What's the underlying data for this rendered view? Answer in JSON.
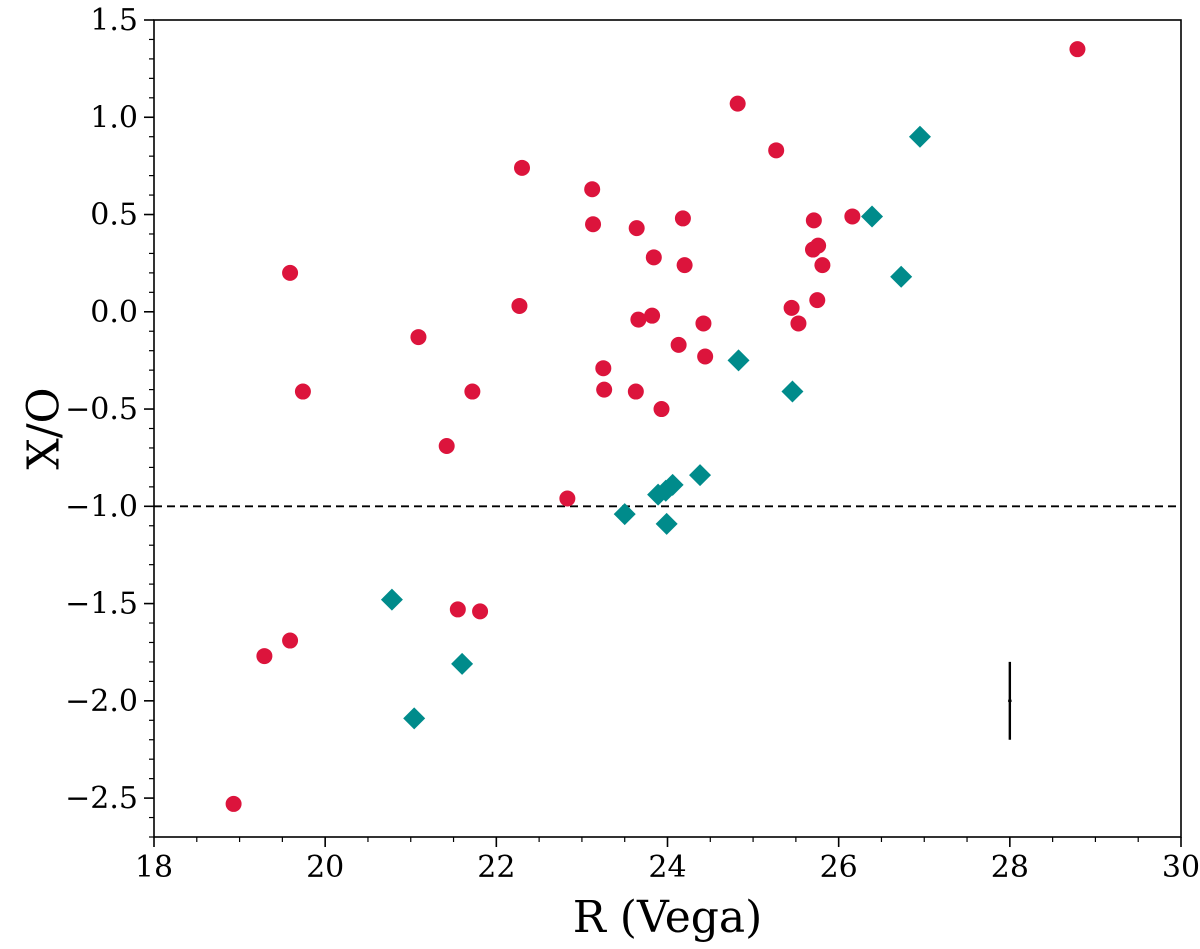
{
  "chart_data": {
    "type": "scatter",
    "title": "",
    "xlabel": "R (Vega)",
    "ylabel": "X/O",
    "xlim": [
      18,
      30
    ],
    "ylim": [
      -2.7,
      1.5
    ],
    "x_major_ticks": [
      18,
      20,
      22,
      24,
      26,
      28,
      30
    ],
    "x_tick_labels": [
      "18",
      "20",
      "22",
      "24",
      "26",
      "28",
      "30"
    ],
    "y_major_ticks": [
      -2.5,
      -2.0,
      -1.5,
      -1.0,
      -0.5,
      0.0,
      0.5,
      1.0,
      1.5
    ],
    "y_tick_labels": [
      "−2.5",
      "−2.0",
      "−1.5",
      "−1.0",
      "−0.5",
      "0.0",
      "0.5",
      "1.0",
      "1.5"
    ],
    "grid": false,
    "reference_line": {
      "y": -1.0,
      "style": "dashed",
      "color": "#000000"
    },
    "error_bar": {
      "x": 28.0,
      "y": -2.0,
      "yerr": 0.2,
      "xerr": 0.02,
      "color": "#000000"
    },
    "series": [
      {
        "name": "circles",
        "marker": "circle",
        "color": "#DC143C",
        "points": [
          [
            18.93,
            -2.53
          ],
          [
            19.29,
            -1.77
          ],
          [
            19.59,
            -1.69
          ],
          [
            19.59,
            0.2
          ],
          [
            19.74,
            -0.41
          ],
          [
            21.09,
            -0.13
          ],
          [
            21.42,
            -0.69
          ],
          [
            21.55,
            -1.53
          ],
          [
            21.72,
            -0.41
          ],
          [
            21.81,
            -1.54
          ],
          [
            22.27,
            0.03
          ],
          [
            22.3,
            0.74
          ],
          [
            22.83,
            -0.96
          ],
          [
            23.12,
            0.63
          ],
          [
            23.13,
            0.45
          ],
          [
            23.25,
            -0.29
          ],
          [
            23.26,
            -0.4
          ],
          [
            23.63,
            -0.41
          ],
          [
            23.64,
            0.43
          ],
          [
            23.66,
            -0.04
          ],
          [
            23.82,
            -0.02
          ],
          [
            23.84,
            0.28
          ],
          [
            23.93,
            -0.5
          ],
          [
            24.13,
            -0.17
          ],
          [
            24.18,
            0.48
          ],
          [
            24.2,
            0.24
          ],
          [
            24.42,
            -0.06
          ],
          [
            24.44,
            -0.23
          ],
          [
            24.82,
            1.07
          ],
          [
            25.27,
            0.83
          ],
          [
            25.45,
            0.02
          ],
          [
            25.53,
            -0.06
          ],
          [
            25.7,
            0.32
          ],
          [
            25.71,
            0.47
          ],
          [
            25.75,
            0.06
          ],
          [
            25.76,
            0.34
          ],
          [
            25.81,
            0.24
          ],
          [
            26.16,
            0.49
          ],
          [
            28.79,
            1.35
          ]
        ]
      },
      {
        "name": "diamonds",
        "marker": "diamond",
        "color": "#008B8B",
        "points": [
          [
            20.78,
            -1.48
          ],
          [
            21.04,
            -2.09
          ],
          [
            21.6,
            -1.81
          ],
          [
            23.5,
            -1.04
          ],
          [
            23.89,
            -0.94
          ],
          [
            23.98,
            -0.92
          ],
          [
            23.99,
            -1.09
          ],
          [
            24.06,
            -0.89
          ],
          [
            24.38,
            -0.84
          ],
          [
            24.83,
            -0.25
          ],
          [
            25.46,
            -0.41
          ],
          [
            26.39,
            0.49
          ],
          [
            26.73,
            0.18
          ],
          [
            26.95,
            0.9
          ]
        ]
      }
    ]
  }
}
